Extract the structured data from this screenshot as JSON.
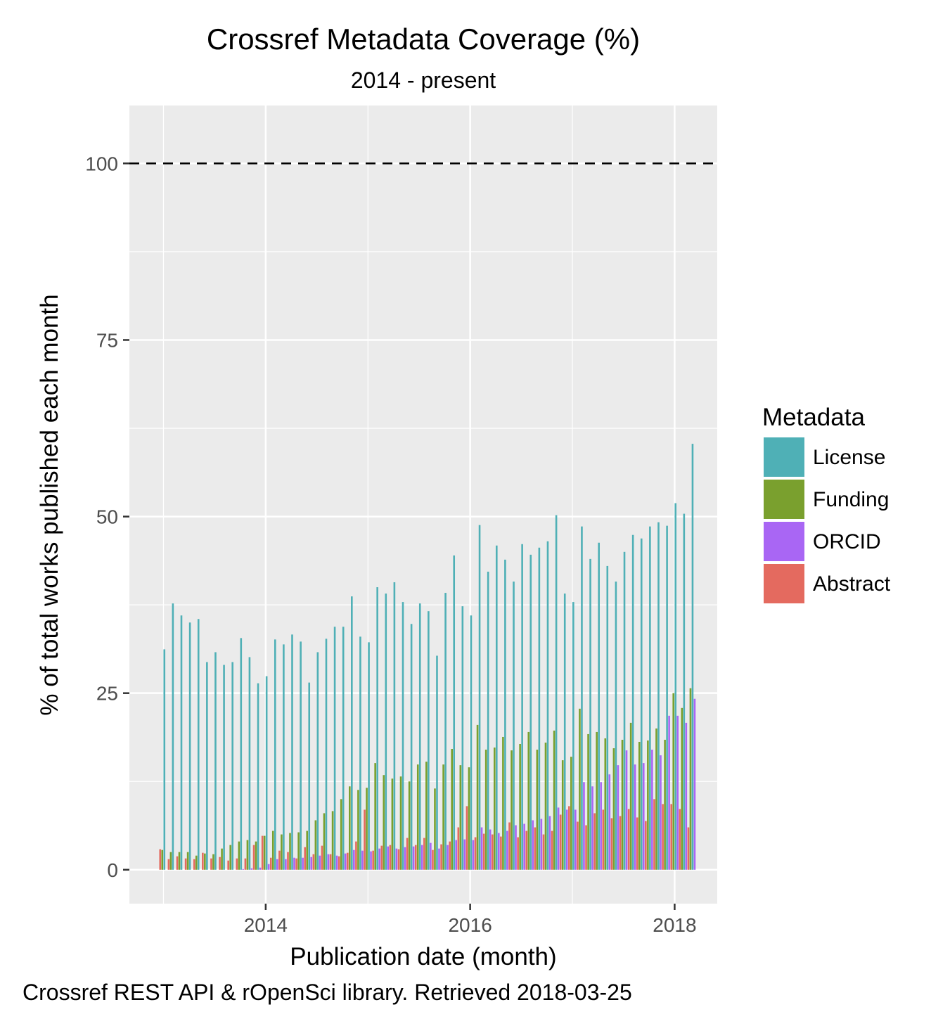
{
  "chart_data": {
    "type": "bar",
    "title": "Crossref Metadata Coverage (%)",
    "subtitle": "2014 - present",
    "xlabel": "Publication date (month)",
    "ylabel": "% of total works published each month",
    "caption": "Crossref REST API & rOpenSci library. Retrieved 2018-03-25",
    "ylim": [
      -4.8,
      108.2
    ],
    "xlim": [
      "2012-09",
      "2018-06"
    ],
    "yticks": [
      0,
      25,
      50,
      75,
      100
    ],
    "ytick_labels": [
      "0",
      "25",
      "50",
      "75",
      "100"
    ],
    "xticks": [
      2014,
      2016,
      2018
    ],
    "xtick_labels": [
      "2014",
      "2016",
      "2018"
    ],
    "grid": true,
    "reference_line": {
      "y": 100,
      "style": "dashed"
    },
    "legend": {
      "title": "Metadata",
      "position": "right"
    },
    "months": [
      "2013-01",
      "2013-02",
      "2013-03",
      "2013-04",
      "2013-05",
      "2013-06",
      "2013-07",
      "2013-08",
      "2013-09",
      "2013-10",
      "2013-11",
      "2013-12",
      "2014-01",
      "2014-02",
      "2014-03",
      "2014-04",
      "2014-05",
      "2014-06",
      "2014-07",
      "2014-08",
      "2014-09",
      "2014-10",
      "2014-11",
      "2014-12",
      "2015-01",
      "2015-02",
      "2015-03",
      "2015-04",
      "2015-05",
      "2015-06",
      "2015-07",
      "2015-08",
      "2015-09",
      "2015-10",
      "2015-11",
      "2015-12",
      "2016-01",
      "2016-02",
      "2016-03",
      "2016-04",
      "2016-05",
      "2016-06",
      "2016-07",
      "2016-08",
      "2016-09",
      "2016-10",
      "2016-11",
      "2016-12",
      "2017-01",
      "2017-02",
      "2017-03",
      "2017-04",
      "2017-05",
      "2017-06",
      "2017-07",
      "2017-08",
      "2017-09",
      "2017-10",
      "2017-11",
      "2017-12",
      "2018-01",
      "2018-02",
      "2018-03"
    ],
    "series": [
      {
        "name": "License",
        "color": "#4FB0B6",
        "values": [
          31.2,
          37.7,
          36.0,
          35.0,
          35.5,
          29.4,
          30.8,
          29.0,
          29.4,
          32.8,
          30.1,
          26.4,
          27.4,
          32.6,
          31.9,
          33.3,
          32.3,
          26.5,
          30.8,
          32.7,
          34.4,
          34.4,
          38.7,
          33.0,
          32.2,
          40.0,
          39.1,
          40.7,
          37.9,
          34.8,
          37.7,
          36.6,
          30.3,
          39.2,
          44.5,
          37.3,
          36.0,
          48.8,
          42.2,
          45.9,
          43.9,
          40.8,
          46.1,
          44.6,
          45.6,
          46.5,
          50.2,
          39.1,
          37.9,
          48.6,
          44.0,
          46.3,
          43.0,
          40.8,
          45.0,
          47.4,
          46.9,
          48.6,
          49.2,
          48.7,
          51.9,
          50.4,
          60.3
        ]
      },
      {
        "name": "Funding",
        "color": "#7AA02E",
        "values": [
          2.8,
          2.5,
          2.5,
          2.5,
          2.0,
          2.3,
          2.2,
          3.0,
          3.5,
          4.0,
          4.2,
          4.0,
          4.8,
          5.5,
          5.0,
          5.2,
          5.3,
          5.5,
          7.0,
          8.0,
          8.3,
          10.0,
          11.8,
          11.3,
          11.6,
          15.1,
          13.4,
          12.9,
          13.2,
          12.5,
          14.9,
          15.3,
          11.5,
          14.9,
          17.1,
          14.8,
          14.5,
          20.5,
          17.0,
          17.3,
          18.8,
          16.9,
          17.8,
          19.5,
          17.0,
          18.0,
          19.7,
          15.5,
          16.0,
          22.8,
          19.2,
          19.5,
          18.6,
          17.2,
          18.4,
          20.8,
          18.1,
          18.3,
          20.0,
          18.4,
          25.0,
          22.9,
          25.7
        ]
      },
      {
        "name": "ORCID",
        "color": "#A966F4",
        "values": [
          0,
          0,
          0,
          0,
          0,
          0,
          0,
          0,
          0,
          0.1,
          0.2,
          0.3,
          0.8,
          1.5,
          1.5,
          1.7,
          1.7,
          1.8,
          2.0,
          2.2,
          2.0,
          2.3,
          2.8,
          2.7,
          2.6,
          3.0,
          3.3,
          3.0,
          3.2,
          3.3,
          3.5,
          3.8,
          3.0,
          3.5,
          4.2,
          4.3,
          4.2,
          6.0,
          5.7,
          5.2,
          5.5,
          6.3,
          6.5,
          7.0,
          7.2,
          7.6,
          8.8,
          8.5,
          8.5,
          12.4,
          11.8,
          12.4,
          13.5,
          14.8,
          16.9,
          14.9,
          15.1,
          17.0,
          16.2,
          21.8,
          21.8,
          20.8,
          24.2
        ]
      },
      {
        "name": "Abstract",
        "color": "#E46A5F",
        "values": [
          2.9,
          1.5,
          1.9,
          1.6,
          1.5,
          2.4,
          1.6,
          1.8,
          1.3,
          1.6,
          1.6,
          3.5,
          4.8,
          1.7,
          2.7,
          2.5,
          1.6,
          3.2,
          2.2,
          3.4,
          2.2,
          1.9,
          2.4,
          4.0,
          8.5,
          2.7,
          3.4,
          3.5,
          2.9,
          4.5,
          3.5,
          4.5,
          2.8,
          3.6,
          4.0,
          6.0,
          9.0,
          4.6,
          5.1,
          5.0,
          4.7,
          6.7,
          4.6,
          5.5,
          6.0,
          5.0,
          5.5,
          7.8,
          9.0,
          6.8,
          6.3,
          8.0,
          8.5,
          7.3,
          7.6,
          8.6,
          7.4,
          6.9,
          10.0,
          9.3,
          9.3,
          8.6,
          6.0
        ]
      }
    ]
  }
}
